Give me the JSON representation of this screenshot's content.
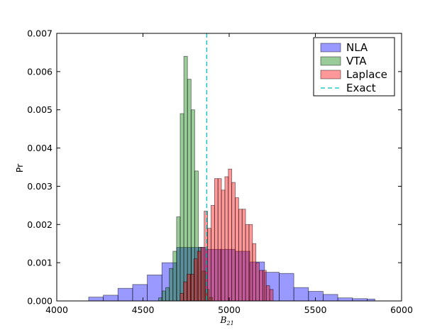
{
  "chart_data": {
    "type": "histogram",
    "xlabel": "B",
    "xlabel_sub": "21",
    "ylabel": "Pr",
    "xlim": [
      4000,
      6000
    ],
    "ylim": [
      0,
      0.007
    ],
    "xticks": [
      "4000",
      "4500",
      "5000",
      "5500",
      "6000"
    ],
    "yticks": [
      "0.000",
      "0.001",
      "0.002",
      "0.003",
      "0.004",
      "0.005",
      "0.006",
      "0.007"
    ],
    "grid": false,
    "legend_position": "top-right",
    "exact_value": 4870,
    "series": [
      {
        "name": "NLA",
        "color": "#0000ff",
        "bins": [
          [
            4185,
            4270,
            0.0001
          ],
          [
            4270,
            4355,
            0.00015
          ],
          [
            4355,
            4440,
            0.00033
          ],
          [
            4440,
            4525,
            0.00043
          ],
          [
            4525,
            4610,
            0.00068
          ],
          [
            4610,
            4695,
            0.001
          ],
          [
            4695,
            4780,
            0.0014
          ],
          [
            4780,
            4865,
            0.0014
          ],
          [
            4865,
            4950,
            0.00135
          ],
          [
            4950,
            5035,
            0.00135
          ],
          [
            5035,
            5120,
            0.0013
          ],
          [
            5120,
            5205,
            0.00102
          ],
          [
            5205,
            5290,
            0.00075
          ],
          [
            5290,
            5375,
            0.00072
          ],
          [
            5375,
            5460,
            0.00035
          ],
          [
            5460,
            5545,
            0.00025
          ],
          [
            5545,
            5630,
            0.00017
          ],
          [
            5630,
            5715,
            8e-05
          ],
          [
            5715,
            5800,
            6e-05
          ],
          [
            5800,
            5845,
            5e-05
          ]
        ]
      },
      {
        "name": "VTA",
        "color": "#008000",
        "bins": [
          [
            4590,
            4611,
            8e-05
          ],
          [
            4611,
            4632,
            0.00026
          ],
          [
            4632,
            4653,
            0.00035
          ],
          [
            4653,
            4674,
            0.00085
          ],
          [
            4674,
            4695,
            0.0013
          ],
          [
            4695,
            4716,
            0.0022
          ],
          [
            4716,
            4737,
            0.0049
          ],
          [
            4737,
            4758,
            0.0064
          ],
          [
            4758,
            4779,
            0.0058
          ],
          [
            4779,
            4800,
            0.005
          ],
          [
            4800,
            4821,
            0.0034
          ],
          [
            4821,
            4842,
            0.0014
          ],
          [
            4842,
            4863,
            0.00078
          ],
          [
            4863,
            4884,
            0.0003
          ],
          [
            4884,
            4905,
            9e-05
          ]
        ]
      },
      {
        "name": "Laplace",
        "color": "#ff0000",
        "bins": [
          [
            4715,
            4735,
            0.0002
          ],
          [
            4735,
            4755,
            0.0005
          ],
          [
            4755,
            4775,
            0.0007
          ],
          [
            4775,
            4795,
            0.0007
          ],
          [
            4795,
            4815,
            0.0011
          ],
          [
            4815,
            4835,
            0.0013
          ],
          [
            4835,
            4855,
            0.0014
          ],
          [
            4855,
            4875,
            0.00235
          ],
          [
            4875,
            4895,
            0.0019
          ],
          [
            4895,
            4915,
            0.0025
          ],
          [
            4915,
            4935,
            0.0032
          ],
          [
            4935,
            4955,
            0.0032
          ],
          [
            4955,
            4975,
            0.0029
          ],
          [
            4975,
            4995,
            0.00325
          ],
          [
            4995,
            5015,
            0.00345
          ],
          [
            5015,
            5035,
            0.0031
          ],
          [
            5035,
            5055,
            0.0027
          ],
          [
            5055,
            5075,
            0.0024
          ],
          [
            5075,
            5095,
            0.0024
          ],
          [
            5095,
            5115,
            0.002
          ],
          [
            5115,
            5135,
            0.002
          ],
          [
            5135,
            5155,
            0.0015
          ],
          [
            5155,
            5175,
            0.001
          ],
          [
            5175,
            5195,
            0.0008
          ],
          [
            5195,
            5215,
            0.0008
          ],
          [
            5215,
            5235,
            0.0004
          ],
          [
            5235,
            5255,
            0.0003
          ]
        ]
      }
    ],
    "legend": [
      {
        "label": "NLA",
        "kind": "patch",
        "color": "#0000ff"
      },
      {
        "label": "VTA",
        "kind": "patch",
        "color": "#008000"
      },
      {
        "label": "Laplace",
        "kind": "patch",
        "color": "#ff0000"
      },
      {
        "label": "Exact",
        "kind": "line",
        "color": "#00bfbf"
      }
    ]
  }
}
